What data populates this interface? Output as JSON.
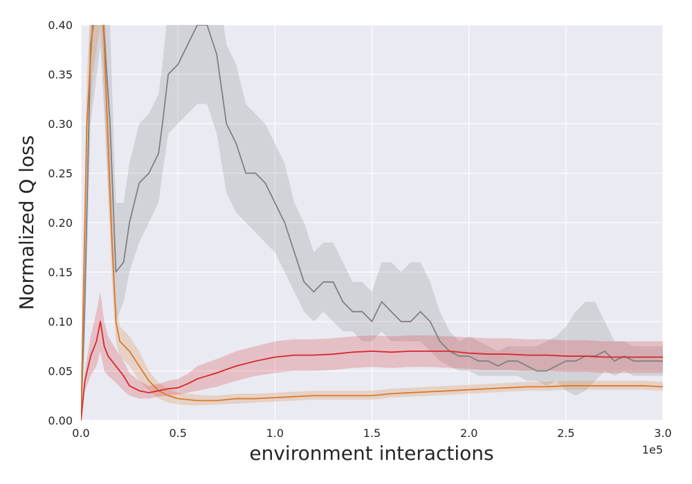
{
  "chart_data": {
    "type": "line",
    "xlabel": "environment interactions",
    "ylabel": "Normalized Q loss",
    "x_offset_label": "1e5",
    "xlim": [
      0,
      3.0
    ],
    "ylim": [
      0,
      0.4
    ],
    "x_ticks": [
      "0.0",
      "0.5",
      "1.0",
      "1.5",
      "2.0",
      "2.5",
      "3.0"
    ],
    "y_ticks": [
      "0.00",
      "0.05",
      "0.10",
      "0.15",
      "0.20",
      "0.25",
      "0.30",
      "0.35",
      "0.40"
    ],
    "grid": true,
    "background": "#eaeaf2",
    "series": [
      {
        "color": "#808080",
        "x": [
          0.0,
          0.02,
          0.05,
          0.1,
          0.15,
          0.18,
          0.22,
          0.25,
          0.3,
          0.35,
          0.4,
          0.42,
          0.45,
          0.5,
          0.55,
          0.6,
          0.65,
          0.7,
          0.75,
          0.8,
          0.85,
          0.9,
          0.95,
          1.0,
          1.05,
          1.1,
          1.15,
          1.2,
          1.25,
          1.3,
          1.35,
          1.4,
          1.45,
          1.5,
          1.55,
          1.6,
          1.65,
          1.7,
          1.75,
          1.8,
          1.85,
          1.9,
          1.95,
          2.0,
          2.05,
          2.1,
          2.15,
          2.2,
          2.25,
          2.3,
          2.35,
          2.4,
          2.45,
          2.5,
          2.55,
          2.6,
          2.65,
          2.7,
          2.75,
          2.8,
          2.85,
          2.9,
          2.95,
          3.0
        ],
        "y": [
          0.0,
          0.12,
          0.38,
          0.45,
          0.3,
          0.15,
          0.16,
          0.2,
          0.24,
          0.25,
          0.27,
          0.3,
          0.35,
          0.36,
          0.38,
          0.4,
          0.4,
          0.37,
          0.3,
          0.28,
          0.25,
          0.25,
          0.24,
          0.22,
          0.2,
          0.17,
          0.14,
          0.13,
          0.14,
          0.14,
          0.12,
          0.11,
          0.11,
          0.1,
          0.12,
          0.11,
          0.1,
          0.1,
          0.11,
          0.1,
          0.08,
          0.07,
          0.065,
          0.065,
          0.06,
          0.06,
          0.055,
          0.06,
          0.06,
          0.055,
          0.05,
          0.05,
          0.055,
          0.06,
          0.06,
          0.065,
          0.065,
          0.07,
          0.06,
          0.065,
          0.06,
          0.06,
          0.06,
          0.06
        ],
        "lower": [
          0.0,
          0.08,
          0.3,
          0.38,
          0.2,
          0.1,
          0.12,
          0.15,
          0.18,
          0.2,
          0.22,
          0.25,
          0.29,
          0.3,
          0.31,
          0.32,
          0.32,
          0.29,
          0.23,
          0.21,
          0.2,
          0.19,
          0.18,
          0.17,
          0.15,
          0.13,
          0.11,
          0.1,
          0.11,
          0.1,
          0.09,
          0.09,
          0.08,
          0.08,
          0.09,
          0.08,
          0.08,
          0.08,
          0.08,
          0.07,
          0.06,
          0.055,
          0.05,
          0.05,
          0.045,
          0.045,
          0.045,
          0.045,
          0.045,
          0.04,
          0.04,
          0.035,
          0.04,
          0.03,
          0.025,
          0.03,
          0.04,
          0.05,
          0.045,
          0.05,
          0.045,
          0.045,
          0.045,
          0.045
        ],
        "upper": [
          0.0,
          0.16,
          0.45,
          0.5,
          0.4,
          0.22,
          0.22,
          0.26,
          0.3,
          0.31,
          0.33,
          0.36,
          0.42,
          0.43,
          0.45,
          0.47,
          0.47,
          0.45,
          0.38,
          0.36,
          0.32,
          0.31,
          0.3,
          0.28,
          0.26,
          0.22,
          0.2,
          0.17,
          0.18,
          0.18,
          0.16,
          0.14,
          0.14,
          0.13,
          0.16,
          0.16,
          0.15,
          0.16,
          0.16,
          0.14,
          0.11,
          0.09,
          0.08,
          0.085,
          0.08,
          0.075,
          0.07,
          0.075,
          0.075,
          0.075,
          0.075,
          0.08,
          0.085,
          0.095,
          0.11,
          0.12,
          0.12,
          0.1,
          0.08,
          0.08,
          0.075,
          0.075,
          0.075,
          0.075
        ]
      },
      {
        "color": "#d97a2b",
        "x": [
          0.0,
          0.03,
          0.06,
          0.1,
          0.12,
          0.14,
          0.16,
          0.18,
          0.2,
          0.25,
          0.3,
          0.35,
          0.4,
          0.45,
          0.5,
          0.6,
          0.7,
          0.8,
          0.9,
          1.0,
          1.1,
          1.2,
          1.3,
          1.4,
          1.5,
          1.6,
          1.7,
          1.8,
          1.9,
          2.0,
          2.1,
          2.2,
          2.3,
          2.4,
          2.5,
          2.6,
          2.7,
          2.8,
          2.9,
          3.0
        ],
        "y": [
          0.0,
          0.3,
          0.4,
          0.45,
          0.38,
          0.28,
          0.18,
          0.1,
          0.08,
          0.07,
          0.055,
          0.04,
          0.03,
          0.025,
          0.022,
          0.02,
          0.02,
          0.022,
          0.022,
          0.023,
          0.024,
          0.025,
          0.025,
          0.025,
          0.025,
          0.027,
          0.028,
          0.029,
          0.03,
          0.031,
          0.032,
          0.033,
          0.034,
          0.034,
          0.035,
          0.035,
          0.035,
          0.035,
          0.035,
          0.034
        ],
        "lower": [
          0.0,
          0.25,
          0.35,
          0.4,
          0.33,
          0.23,
          0.14,
          0.08,
          0.065,
          0.055,
          0.04,
          0.03,
          0.022,
          0.018,
          0.016,
          0.015,
          0.016,
          0.017,
          0.018,
          0.019,
          0.02,
          0.021,
          0.021,
          0.021,
          0.021,
          0.023,
          0.024,
          0.025,
          0.026,
          0.027,
          0.028,
          0.029,
          0.03,
          0.03,
          0.031,
          0.031,
          0.031,
          0.031,
          0.031,
          0.03
        ],
        "upper": [
          0.0,
          0.35,
          0.45,
          0.5,
          0.43,
          0.33,
          0.22,
          0.12,
          0.095,
          0.085,
          0.07,
          0.05,
          0.038,
          0.032,
          0.028,
          0.026,
          0.025,
          0.027,
          0.027,
          0.028,
          0.029,
          0.03,
          0.03,
          0.03,
          0.03,
          0.032,
          0.033,
          0.034,
          0.035,
          0.036,
          0.037,
          0.038,
          0.039,
          0.039,
          0.04,
          0.04,
          0.04,
          0.04,
          0.04,
          0.039
        ]
      },
      {
        "color": "#d62728",
        "x": [
          0.0,
          0.02,
          0.05,
          0.08,
          0.1,
          0.12,
          0.14,
          0.18,
          0.22,
          0.25,
          0.3,
          0.35,
          0.4,
          0.45,
          0.5,
          0.55,
          0.6,
          0.7,
          0.8,
          0.9,
          1.0,
          1.1,
          1.2,
          1.3,
          1.4,
          1.5,
          1.6,
          1.7,
          1.8,
          1.9,
          2.0,
          2.1,
          2.2,
          2.3,
          2.4,
          2.5,
          2.6,
          2.7,
          2.8,
          2.9,
          3.0
        ],
        "y": [
          0.0,
          0.04,
          0.065,
          0.08,
          0.1,
          0.075,
          0.065,
          0.055,
          0.045,
          0.035,
          0.03,
          0.028,
          0.03,
          0.032,
          0.033,
          0.037,
          0.042,
          0.048,
          0.055,
          0.06,
          0.064,
          0.066,
          0.066,
          0.067,
          0.069,
          0.07,
          0.069,
          0.07,
          0.07,
          0.07,
          0.068,
          0.067,
          0.067,
          0.066,
          0.066,
          0.065,
          0.065,
          0.064,
          0.064,
          0.064,
          0.064
        ],
        "lower": [
          0.0,
          0.03,
          0.045,
          0.055,
          0.07,
          0.05,
          0.045,
          0.038,
          0.03,
          0.025,
          0.022,
          0.022,
          0.024,
          0.025,
          0.026,
          0.028,
          0.03,
          0.034,
          0.04,
          0.045,
          0.048,
          0.05,
          0.05,
          0.051,
          0.053,
          0.054,
          0.053,
          0.054,
          0.054,
          0.053,
          0.052,
          0.051,
          0.051,
          0.05,
          0.05,
          0.049,
          0.049,
          0.048,
          0.048,
          0.048,
          0.048
        ],
        "upper": [
          0.0,
          0.05,
          0.085,
          0.11,
          0.13,
          0.1,
          0.085,
          0.072,
          0.06,
          0.048,
          0.04,
          0.035,
          0.037,
          0.04,
          0.042,
          0.047,
          0.055,
          0.062,
          0.07,
          0.075,
          0.08,
          0.082,
          0.082,
          0.083,
          0.085,
          0.086,
          0.085,
          0.086,
          0.086,
          0.085,
          0.084,
          0.083,
          0.083,
          0.082,
          0.082,
          0.081,
          0.081,
          0.08,
          0.08,
          0.08,
          0.08
        ]
      }
    ]
  }
}
